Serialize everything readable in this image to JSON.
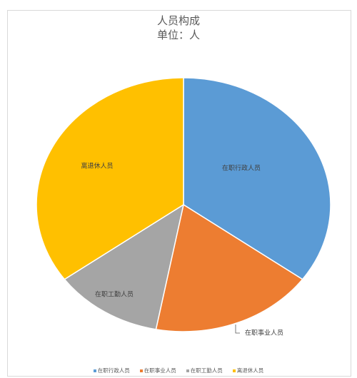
{
  "chart_data": {
    "type": "pie",
    "title": "人员构成",
    "subtitle": "单位：人",
    "categories": [
      "在职行政人员",
      "在职事业人员",
      "在职工勤人员",
      "离退休人员"
    ],
    "values": [
      35,
      18,
      12,
      35
    ],
    "colors": [
      "#5B9BD5",
      "#ED7D31",
      "#A5A5A5",
      "#FFC000"
    ],
    "data_labels": [
      "在职行政人员",
      "在职事业人员",
      "在职工勤人员",
      "离退休人员"
    ],
    "legend_position": "bottom"
  }
}
